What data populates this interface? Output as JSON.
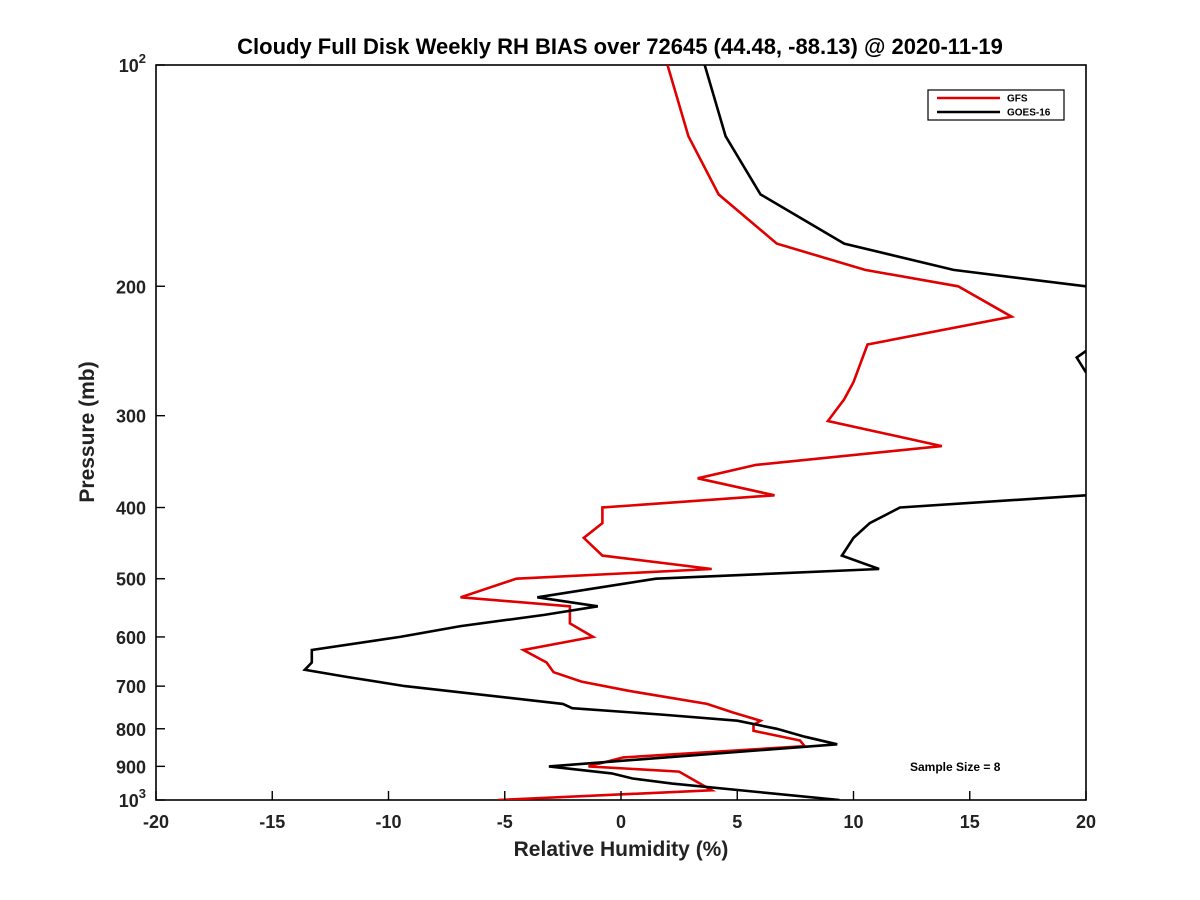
{
  "chart_data": {
    "type": "line",
    "title": "Cloudy Full Disk Weekly RH BIAS over 72645 (44.48, -88.13) @ 2020-11-19",
    "xlabel": "Relative Humidity (%)",
    "ylabel": "Pressure (mb)",
    "xlim": [
      -20,
      20
    ],
    "ylim": [
      100,
      1000
    ],
    "yscale": "log",
    "y_reversed": true,
    "x_ticks": [
      "-20",
      "-15",
      "-10",
      "-5",
      "0",
      "5",
      "10",
      "15",
      "20"
    ],
    "y_ticks": [
      {
        "value": 100,
        "base": "10",
        "exp": "2"
      },
      {
        "value": 200,
        "label": "200"
      },
      {
        "value": 300,
        "label": "300"
      },
      {
        "value": 400,
        "label": "400"
      },
      {
        "value": 500,
        "label": "500"
      },
      {
        "value": 600,
        "label": "600"
      },
      {
        "value": 700,
        "label": "700"
      },
      {
        "value": 800,
        "label": "800"
      },
      {
        "value": 900,
        "label": "900"
      },
      {
        "value": 1000,
        "base": "10",
        "exp": "3"
      }
    ],
    "legend_position": "top-right",
    "grid": false,
    "annotation": "Sample Size = 8",
    "series": [
      {
        "name": "GFS",
        "color": "#e00000",
        "points": [
          [
            2.0,
            100
          ],
          [
            2.9,
            125
          ],
          [
            4.2,
            150
          ],
          [
            6.7,
            175
          ],
          [
            10.5,
            190
          ],
          [
            14.5,
            200
          ],
          [
            16.8,
            220
          ],
          [
            10.6,
            240
          ],
          [
            10.0,
            270
          ],
          [
            9.6,
            285
          ],
          [
            8.9,
            305
          ],
          [
            13.8,
            330
          ],
          [
            5.8,
            350
          ],
          [
            3.3,
            365
          ],
          [
            6.6,
            385
          ],
          [
            -0.8,
            400
          ],
          [
            -0.8,
            420
          ],
          [
            -1.6,
            440
          ],
          [
            -0.8,
            465
          ],
          [
            3.9,
            485
          ],
          [
            -4.5,
            500
          ],
          [
            -6.9,
            530
          ],
          [
            -2.2,
            545
          ],
          [
            -2.2,
            575
          ],
          [
            -1.2,
            600
          ],
          [
            -4.2,
            625
          ],
          [
            -3.2,
            650
          ],
          [
            -2.9,
            670
          ],
          [
            -1.7,
            690
          ],
          [
            0.3,
            710
          ],
          [
            3.7,
            740
          ],
          [
            4.8,
            760
          ],
          [
            6.0,
            780
          ],
          [
            5.7,
            790
          ],
          [
            5.7,
            805
          ],
          [
            7.7,
            830
          ],
          [
            7.9,
            845
          ],
          [
            0.1,
            875
          ],
          [
            -1.4,
            900
          ],
          [
            2.5,
            915
          ],
          [
            3.9,
            970
          ],
          [
            -5.3,
            1000
          ]
        ]
      },
      {
        "name": "GOES-16",
        "color": "#000000",
        "segments": [
          [
            [
              3.6,
              100
            ],
            [
              4.5,
              125
            ],
            [
              6.0,
              150
            ],
            [
              9.6,
              175
            ],
            [
              14.3,
              190
            ],
            [
              20.0,
              200
            ]
          ],
          [
            [
              20.0,
              245
            ],
            [
              19.6,
              250
            ],
            [
              20.0,
              262
            ]
          ],
          [
            [
              20.0,
              385
            ],
            [
              12.0,
              400
            ],
            [
              10.7,
              420
            ],
            [
              10.0,
              440
            ],
            [
              9.5,
              465
            ],
            [
              11.1,
              485
            ],
            [
              1.5,
              500
            ],
            [
              -3.6,
              530
            ],
            [
              -1.0,
              545
            ],
            [
              -3.3,
              560
            ],
            [
              -6.9,
              580
            ],
            [
              -9.5,
              600
            ],
            [
              -13.3,
              625
            ],
            [
              -13.3,
              650
            ],
            [
              -13.6,
              665
            ],
            [
              -11.8,
              680
            ],
            [
              -9.3,
              700
            ],
            [
              -2.5,
              740
            ],
            [
              -2.1,
              750
            ],
            [
              1.7,
              765
            ],
            [
              5.0,
              780
            ],
            [
              6.7,
              800
            ],
            [
              7.9,
              820
            ],
            [
              9.3,
              840
            ],
            [
              -3.1,
              900
            ],
            [
              -0.4,
              920
            ],
            [
              0.5,
              935
            ],
            [
              2.2,
              950
            ],
            [
              9.4,
              1000
            ]
          ]
        ]
      }
    ]
  }
}
